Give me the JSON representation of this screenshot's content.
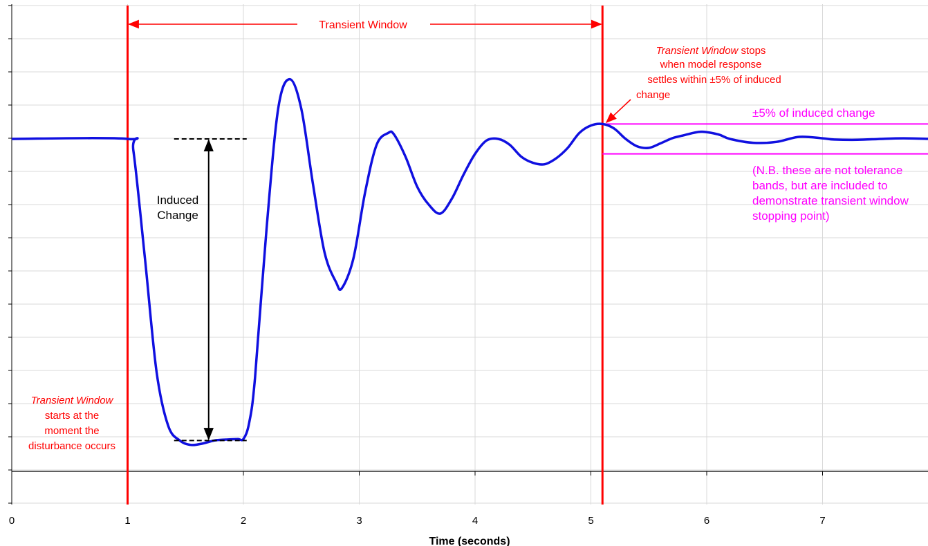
{
  "chart_data": {
    "type": "line",
    "title": "",
    "xlabel": "Time (seconds)",
    "ylabel": "",
    "x_ticks": [
      "0",
      "1",
      "2",
      "3",
      "4",
      "5",
      "6",
      "7"
    ],
    "xlim": [
      0,
      7.95
    ],
    "ylim": [
      -1.2,
      0.4
    ],
    "grid": true,
    "legend": "none",
    "series": [
      {
        "color": "#1010e0",
        "x": [
          0,
          1.0,
          1.05,
          1.15,
          1.25,
          1.35,
          1.45,
          1.55,
          1.65,
          1.75,
          1.85,
          1.95,
          2.0,
          2.05,
          2.1,
          2.2,
          2.3,
          2.4,
          2.5,
          2.6,
          2.7,
          2.8,
          2.85,
          2.95,
          3.05,
          3.15,
          3.25,
          3.3,
          3.4,
          3.5,
          3.6,
          3.7,
          3.8,
          3.9,
          4.0,
          4.1,
          4.2,
          4.3,
          4.4,
          4.5,
          4.6,
          4.7,
          4.8,
          4.9,
          5.0,
          5.1,
          5.2,
          5.3,
          5.4,
          5.5,
          5.6,
          5.7,
          5.8,
          5.95,
          6.1,
          6.2,
          6.4,
          6.6,
          6.8,
          7.0,
          7.1,
          7.3,
          7.5,
          7.7,
          7.95
        ],
        "y": [
          0,
          0,
          -0.04,
          -0.4,
          -0.78,
          -0.96,
          -1.01,
          -1.025,
          -1.02,
          -1.01,
          -1.007,
          -1.005,
          -1.005,
          -0.95,
          -0.8,
          -0.3,
          0.1,
          0.2,
          0.1,
          -0.15,
          -0.38,
          -0.48,
          -0.5,
          -0.4,
          -0.18,
          -0.02,
          0.02,
          0.015,
          -0.06,
          -0.16,
          -0.22,
          -0.25,
          -0.2,
          -0.12,
          -0.05,
          -0.005,
          0.0,
          -0.02,
          -0.06,
          -0.08,
          -0.085,
          -0.065,
          -0.03,
          0.02,
          0.045,
          0.05,
          0.035,
          0.0,
          -0.025,
          -0.03,
          -0.015,
          0.002,
          0.012,
          0.024,
          0.015,
          0.0,
          -0.013,
          -0.01,
          0.007,
          0.002,
          -0.002,
          -0.003,
          0.0,
          0.002,
          0.0
        ]
      }
    ],
    "reference_lines": {
      "transient_window_start": 1.0,
      "transient_window_stop": 5.1,
      "band_upper": 0.05,
      "band_lower": -0.05,
      "band_start": 5.1,
      "induced_change_top": 0.0,
      "induced_change_bottom": -1.01,
      "induced_change_x": 1.7
    }
  },
  "annotations": {
    "transient_window_label": "Transient Window",
    "stop_note": {
      "line1_italic": "Transient Window",
      "line1_rest": " stops",
      "line2": "when model response",
      "line3": "settles within ±5% of induced",
      "line4": "change"
    },
    "start_note": {
      "line1": "Transient Window",
      "line2": "starts at the",
      "line3": "moment the",
      "line4": "disturbance occurs"
    },
    "band_label": "±5% of induced change",
    "nb_note": {
      "line1": "(N.B. these are not tolerance",
      "line2": "bands, but are included to",
      "line3": "demonstrate transient window",
      "line4": "stopping point)"
    },
    "induced_change": {
      "line1": "Induced",
      "line2": "Change"
    }
  },
  "colors": {
    "series": "#1010e0",
    "window_marker": "#ff0000",
    "band": "#ff00ff",
    "grid": "#d9d9d9"
  }
}
